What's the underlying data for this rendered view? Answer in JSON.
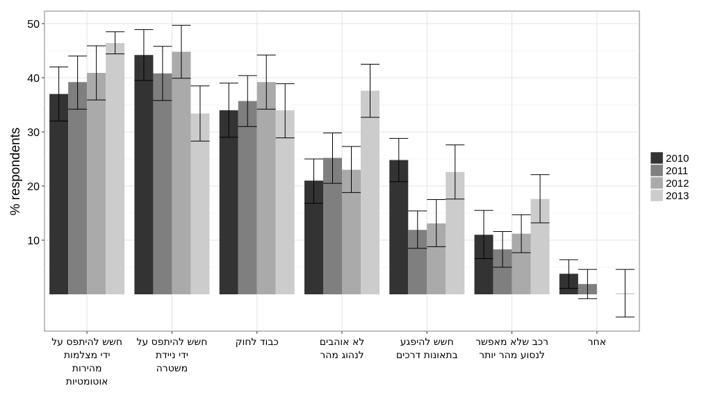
{
  "chart_data": {
    "type": "bar",
    "title": "",
    "xlabel": "",
    "ylabel": "% respondents",
    "ylim": [
      -4.5,
      52
    ],
    "yticks": [
      10,
      20,
      30,
      40,
      50
    ],
    "grid": true,
    "legend_position": "right",
    "categories": [
      [
        "חשש להיתפס על",
        "ידי מצלמות",
        "מהירות",
        "אוטומטיות"
      ],
      [
        "חשש להיתפס על",
        "ידי ניידת",
        "משטרה"
      ],
      [
        "כבוד לחוק"
      ],
      [
        "לא אוהבים",
        "לנהוג מהר"
      ],
      [
        "חשש להיפגע",
        "בתאונות דרכים"
      ],
      [
        "רכב שלא מאפשר",
        "לנסוע מהר יותר"
      ],
      [
        "אחר"
      ]
    ],
    "series": [
      {
        "name": "2010",
        "color": "#333333",
        "values": [
          37.0,
          44.2,
          34.0,
          21.0,
          24.8,
          11.0,
          3.8
        ],
        "err_low": [
          32.0,
          39.5,
          29.0,
          16.8,
          20.8,
          6.6,
          1.1
        ],
        "err_high": [
          42.0,
          48.9,
          39.0,
          25.0,
          28.8,
          15.5,
          6.4
        ]
      },
      {
        "name": "2011",
        "color": "#7f7f7f",
        "values": [
          39.2,
          40.8,
          35.7,
          25.2,
          11.9,
          8.3,
          1.9
        ],
        "err_low": [
          34.2,
          35.8,
          31.0,
          20.5,
          8.5,
          5.0,
          -0.8
        ],
        "err_high": [
          44.0,
          45.8,
          40.4,
          29.8,
          15.4,
          11.6,
          4.6
        ]
      },
      {
        "name": "2012",
        "color": "#aaaaaa",
        "values": [
          40.9,
          44.8,
          39.2,
          23.0,
          13.1,
          11.2,
          null
        ],
        "err_low": [
          35.9,
          39.9,
          34.2,
          18.8,
          8.8,
          7.7,
          null
        ],
        "err_high": [
          45.9,
          49.7,
          44.2,
          27.3,
          17.5,
          14.7,
          null
        ]
      },
      {
        "name": "2013",
        "color": "#cccccc",
        "values": [
          46.4,
          33.4,
          34.0,
          37.6,
          22.6,
          17.6,
          0.2
        ],
        "err_low": [
          44.4,
          28.3,
          28.9,
          32.7,
          17.6,
          13.2,
          -4.2
        ],
        "err_high": [
          48.5,
          38.5,
          38.9,
          42.5,
          27.6,
          22.1,
          4.6
        ]
      }
    ]
  }
}
